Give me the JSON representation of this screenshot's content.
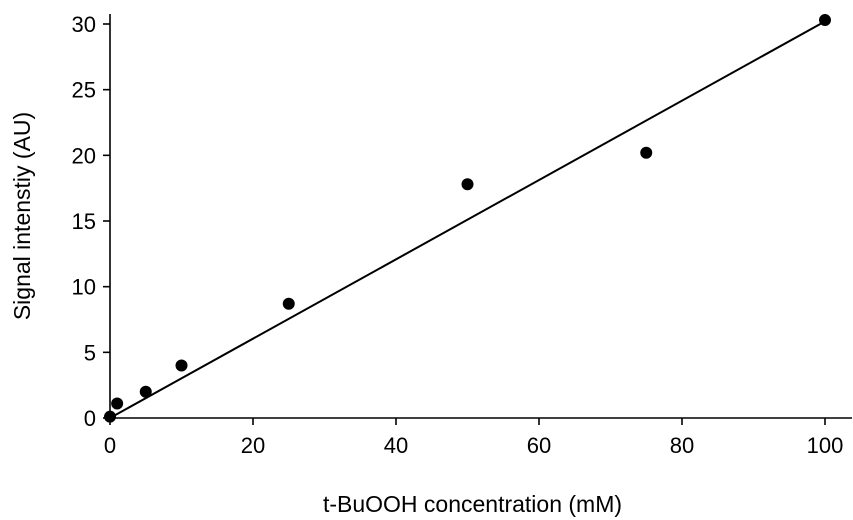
{
  "chart_data": {
    "type": "scatter",
    "xlabel": "t-BuOOH concentration (mM)",
    "ylabel": "Signal intenstiy (AU)",
    "xlim": [
      0,
      100
    ],
    "ylim": [
      0,
      30
    ],
    "x_ticks": [
      0,
      20,
      40,
      60,
      80,
      100
    ],
    "y_ticks": [
      0,
      5,
      10,
      15,
      20,
      25,
      30
    ],
    "grid": false,
    "legend": "none",
    "series": [
      {
        "x": [
          0,
          1,
          5,
          10,
          25,
          50,
          75,
          100
        ],
        "y": [
          0.1,
          1.1,
          2.0,
          4.0,
          8.7,
          17.8,
          20.2,
          30.3
        ]
      }
    ],
    "trendline": {
      "type": "linear",
      "x": [
        0,
        100
      ],
      "y": [
        0,
        30.2
      ]
    },
    "colors": {
      "points": "#000000",
      "line": "#000000"
    }
  }
}
